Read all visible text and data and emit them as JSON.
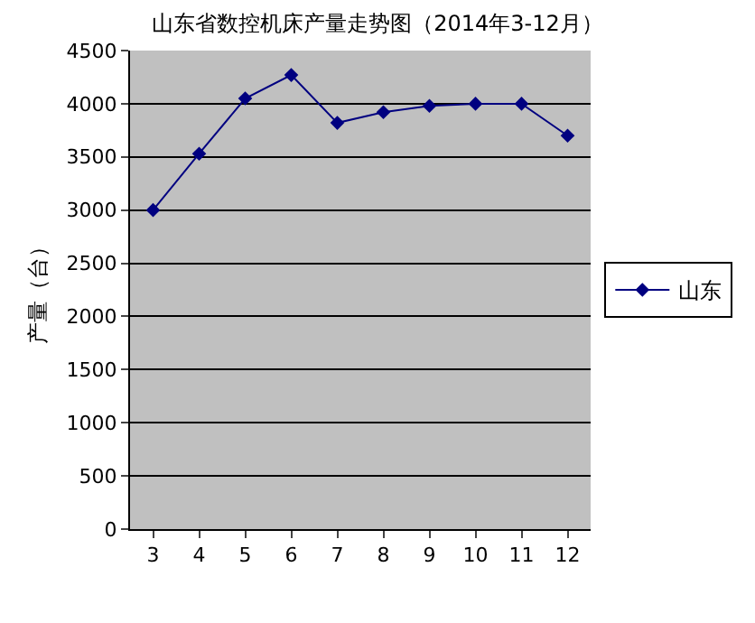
{
  "chart_data": {
    "type": "line",
    "title": "山东省数控机床产量走势图（2014年3-12月）",
    "ylabel": "产量（台）",
    "categories": [
      "3",
      "4",
      "5",
      "6",
      "7",
      "8",
      "9",
      "10",
      "11",
      "12"
    ],
    "series": [
      {
        "name": "山东",
        "color": "#000080",
        "values": [
          3000,
          3530,
          4050,
          4270,
          3820,
          3920,
          3980,
          4000,
          4000,
          3700
        ]
      }
    ],
    "ylim": [
      0,
      4500
    ],
    "yticks": [
      0,
      500,
      1000,
      1500,
      2000,
      2500,
      3000,
      3500,
      4000,
      4500
    ],
    "grid": "y",
    "legend": "right",
    "marker": "diamond",
    "line_style": "solid"
  }
}
